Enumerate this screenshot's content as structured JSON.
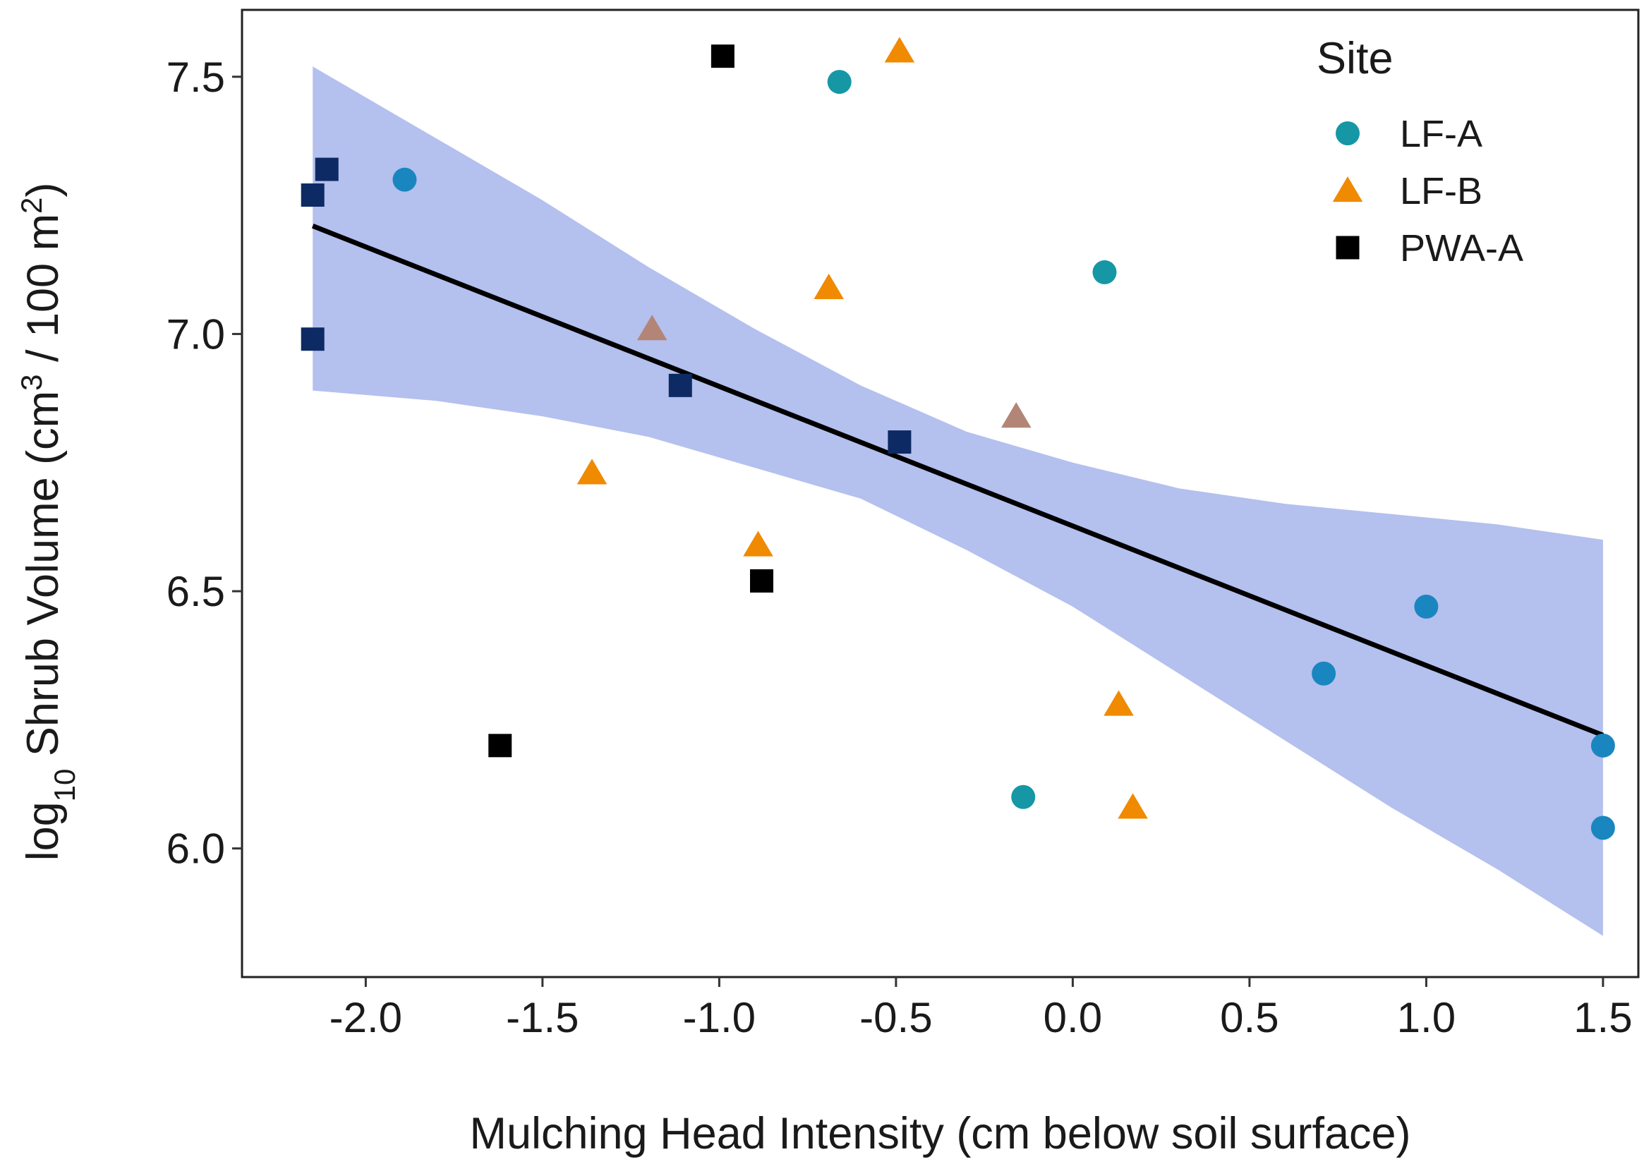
{
  "chart_data": {
    "type": "scatter",
    "title": "",
    "xlabel": "Mulching Head Intensity (cm below soil surface)",
    "ylabel": {
      "prefix": "log",
      "prefix_sub": "10",
      "main": " Shrub Volume (cm",
      "sup1": "3",
      "middle": " / 100 m",
      "sup2": "2",
      "suffix": ")"
    },
    "xlim": [
      -2.35,
      1.6
    ],
    "ylim": [
      5.75,
      7.63
    ],
    "xticks": [
      -2.0,
      -1.5,
      -1.0,
      -0.5,
      0.0,
      0.5,
      1.0,
      1.5
    ],
    "xtick_labels": [
      "-2.0",
      "-1.5",
      "-1.0",
      "-0.5",
      "0.0",
      "0.5",
      "1.0",
      "1.5"
    ],
    "yticks": [
      6.0,
      6.5,
      7.0,
      7.5
    ],
    "ytick_labels": [
      "6.0",
      "6.5",
      "7.0",
      "7.5"
    ],
    "grid": false,
    "legend": {
      "title": "Site",
      "position": "top-right",
      "entries": [
        {
          "name": "LF-A",
          "shape": "circle",
          "color": "#1597a5"
        },
        {
          "name": "LF-B",
          "shape": "triangle",
          "color": "#f08a00"
        },
        {
          "name": "PWA-A",
          "shape": "square",
          "color": "#000000"
        }
      ]
    },
    "series": [
      {
        "name": "LF-A",
        "shape": "circle",
        "color": "#1597a5",
        "points": [
          {
            "x": -1.89,
            "y": 7.3,
            "color": "#1a86c0"
          },
          {
            "x": -0.66,
            "y": 7.49
          },
          {
            "x": 0.09,
            "y": 7.12
          },
          {
            "x": 1.0,
            "y": 6.47,
            "color": "#1a86c0"
          },
          {
            "x": 0.71,
            "y": 6.34,
            "color": "#1a86c0"
          },
          {
            "x": -0.14,
            "y": 6.1
          },
          {
            "x": 1.5,
            "y": 6.2,
            "color": "#1a86c0"
          },
          {
            "x": 1.5,
            "y": 6.04,
            "color": "#1a86c0"
          }
        ]
      },
      {
        "name": "LF-B",
        "shape": "triangle",
        "color": "#f08a00",
        "points": [
          {
            "x": -0.49,
            "y": 7.55
          },
          {
            "x": -0.69,
            "y": 7.09
          },
          {
            "x": -1.19,
            "y": 7.01,
            "color": "#b38576"
          },
          {
            "x": -0.16,
            "y": 6.84,
            "color": "#b38576"
          },
          {
            "x": -1.36,
            "y": 6.73
          },
          {
            "x": -0.89,
            "y": 6.59
          },
          {
            "x": 0.13,
            "y": 6.28
          },
          {
            "x": 0.17,
            "y": 6.08
          }
        ]
      },
      {
        "name": "PWA-A",
        "shape": "square",
        "color": "#000000",
        "points": [
          {
            "x": -0.99,
            "y": 7.54
          },
          {
            "x": -2.11,
            "y": 7.32,
            "color": "#0d2a64"
          },
          {
            "x": -2.15,
            "y": 7.27,
            "color": "#0d2a64"
          },
          {
            "x": -2.15,
            "y": 6.99,
            "color": "#0d2a64"
          },
          {
            "x": -1.11,
            "y": 6.9,
            "color": "#0d2a64"
          },
          {
            "x": -0.49,
            "y": 6.79,
            "color": "#0d2a64"
          },
          {
            "x": -0.88,
            "y": 6.52
          },
          {
            "x": -1.62,
            "y": 6.2
          }
        ]
      }
    ],
    "regression": {
      "color": "#000000",
      "ci_color": "#b4c0ee",
      "points": [
        {
          "x": -2.15,
          "y": 7.21
        },
        {
          "x": 1.5,
          "y": 6.22
        }
      ],
      "ci_upper": [
        {
          "x": -2.15,
          "y": 7.52
        },
        {
          "x": -1.8,
          "y": 7.38
        },
        {
          "x": -1.5,
          "y": 7.26
        },
        {
          "x": -1.2,
          "y": 7.13
        },
        {
          "x": -0.9,
          "y": 7.01
        },
        {
          "x": -0.6,
          "y": 6.9
        },
        {
          "x": -0.3,
          "y": 6.81
        },
        {
          "x": 0.0,
          "y": 6.75
        },
        {
          "x": 0.3,
          "y": 6.7
        },
        {
          "x": 0.6,
          "y": 6.67
        },
        {
          "x": 0.9,
          "y": 6.65
        },
        {
          "x": 1.2,
          "y": 6.63
        },
        {
          "x": 1.5,
          "y": 6.6
        }
      ],
      "ci_lower": [
        {
          "x": -2.15,
          "y": 6.89
        },
        {
          "x": -1.8,
          "y": 6.87
        },
        {
          "x": -1.5,
          "y": 6.84
        },
        {
          "x": -1.2,
          "y": 6.8
        },
        {
          "x": -0.9,
          "y": 6.74
        },
        {
          "x": -0.6,
          "y": 6.68
        },
        {
          "x": -0.3,
          "y": 6.58
        },
        {
          "x": 0.0,
          "y": 6.47
        },
        {
          "x": 0.3,
          "y": 6.34
        },
        {
          "x": 0.6,
          "y": 6.21
        },
        {
          "x": 0.9,
          "y": 6.08
        },
        {
          "x": 1.2,
          "y": 5.96
        },
        {
          "x": 1.5,
          "y": 5.83
        }
      ]
    }
  }
}
